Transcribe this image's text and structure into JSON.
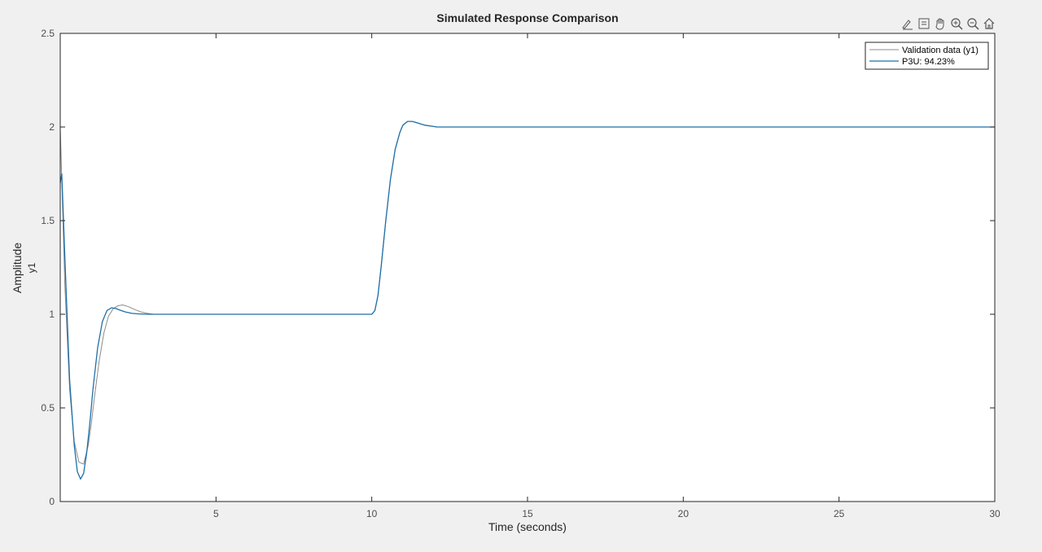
{
  "toolbar": {
    "icons": [
      "edit-brush-icon",
      "data-tips-icon",
      "pan-hand-icon",
      "zoom-in-icon",
      "zoom-out-icon",
      "home-restore-icon"
    ]
  },
  "chart_data": {
    "type": "line",
    "title": "Simulated Response Comparison",
    "xlabel": "Time (seconds)",
    "ylabel": "Amplitude",
    "ylabel_secondary": "y1",
    "xlim": [
      0,
      30
    ],
    "ylim": [
      0,
      2.5
    ],
    "xticks": [
      5,
      10,
      15,
      20,
      25,
      30
    ],
    "yticks": [
      0,
      0.5,
      1,
      1.5,
      2,
      2.5
    ],
    "grid": false,
    "legend_position": "top-right",
    "series": [
      {
        "name": "Validation data (y1)",
        "color": "#8c8c8c",
        "x": [
          0,
          0.15,
          0.3,
          0.45,
          0.6,
          0.75,
          0.9,
          1.0,
          1.1,
          1.25,
          1.4,
          1.55,
          1.7,
          1.85,
          2.0,
          2.2,
          2.4,
          2.6,
          2.8,
          3.0,
          3.3,
          4,
          5,
          6,
          7,
          8,
          9,
          9.9,
          10.0,
          10.1,
          10.2,
          10.3,
          10.45,
          10.6,
          10.75,
          10.9,
          11.0,
          11.15,
          11.3,
          11.5,
          11.7,
          11.9,
          12.1,
          12.4,
          13,
          15,
          20,
          25,
          30
        ],
        "y": [
          2.0,
          1.15,
          0.6,
          0.32,
          0.21,
          0.2,
          0.3,
          0.42,
          0.56,
          0.75,
          0.9,
          0.99,
          1.03,
          1.045,
          1.05,
          1.04,
          1.025,
          1.012,
          1.005,
          1.0,
          1.0,
          1.0,
          1.0,
          1.0,
          1.0,
          1.0,
          1.0,
          1.0,
          1.0,
          1.02,
          1.1,
          1.25,
          1.5,
          1.72,
          1.88,
          1.97,
          2.01,
          2.03,
          2.03,
          2.02,
          2.01,
          2.005,
          2.0,
          2.0,
          2.0,
          2.0,
          2.0,
          2.0,
          2.0
        ]
      },
      {
        "name": "P3U: 94.23%",
        "color": "#1f6fa8",
        "x": [
          0,
          0.05,
          0.15,
          0.3,
          0.45,
          0.55,
          0.65,
          0.75,
          0.85,
          0.95,
          1.05,
          1.2,
          1.35,
          1.5,
          1.65,
          1.8,
          1.95,
          2.1,
          2.3,
          2.5,
          2.8,
          3.0,
          3.3,
          4,
          5,
          6,
          7,
          8,
          9,
          9.9,
          10.0,
          10.1,
          10.2,
          10.3,
          10.45,
          10.6,
          10.75,
          10.9,
          11.0,
          11.15,
          11.3,
          11.5,
          11.7,
          11.9,
          12.1,
          12.4,
          13,
          15,
          20,
          25,
          30
        ],
        "y": [
          1.7,
          1.75,
          1.3,
          0.65,
          0.3,
          0.16,
          0.12,
          0.15,
          0.26,
          0.42,
          0.6,
          0.82,
          0.96,
          1.02,
          1.035,
          1.03,
          1.02,
          1.012,
          1.005,
          1.002,
          1.0,
          1.0,
          1.0,
          1.0,
          1.0,
          1.0,
          1.0,
          1.0,
          1.0,
          1.0,
          1.0,
          1.02,
          1.1,
          1.25,
          1.5,
          1.72,
          1.88,
          1.97,
          2.01,
          2.03,
          2.03,
          2.02,
          2.01,
          2.005,
          2.0,
          2.0,
          2.0,
          2.0,
          2.0,
          2.0,
          2.0
        ]
      }
    ]
  }
}
